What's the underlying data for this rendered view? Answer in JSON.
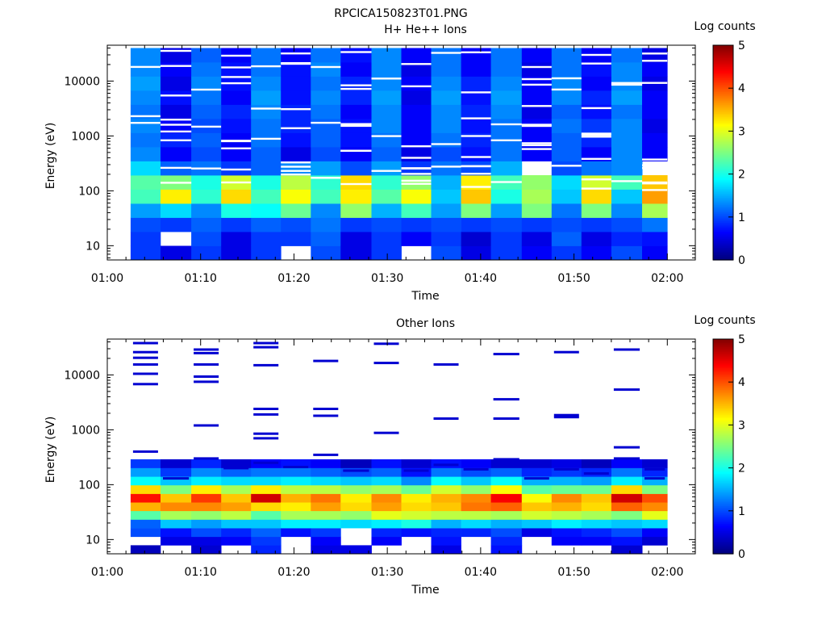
{
  "figure_title": "RPCICA150823T01.PNG",
  "colormap": [
    "#00007f",
    "#0000ff",
    "#007fff",
    "#00ffff",
    "#7fff7f",
    "#ffff00",
    "#ff7f00",
    "#ff0000",
    "#7f0000"
  ],
  "chart_data": [
    {
      "type": "heatmap",
      "title": "H+ He++ Ions",
      "xlabel": "Time",
      "ylabel": "Energy (eV)",
      "x_ticks": [
        "01:00",
        "01:10",
        "01:20",
        "01:30",
        "01:40",
        "01:50",
        "02:00"
      ],
      "xlim_minutes": [
        0,
        63
      ],
      "y_scale": "log",
      "ylim": [
        5.5,
        45000
      ],
      "y_ticks": [
        10,
        100,
        1000,
        10000
      ],
      "y_tick_labels": [
        "10",
        "100",
        "1000",
        "10000"
      ],
      "colorbar": {
        "label": "Log counts",
        "ticks": [
          0,
          1,
          2,
          3,
          4,
          5
        ],
        "range": [
          0,
          5
        ]
      },
      "time_bins": [
        {
          "start": "01:02.5",
          "end": "01:05.7",
          "levels": [
            0.9,
            0.9,
            1.0,
            1.4,
            2.2,
            2.3,
            1.7,
            1.3,
            1.2,
            1.3,
            1.2,
            1.3,
            1.4,
            1.3,
            1.3
          ]
        },
        {
          "start": "01:05.7",
          "end": "01:09",
          "levels": [
            0.5,
            null,
            0.9,
            1.7,
            3.2,
            2.5,
            1.1,
            0.6,
            0.8,
            0.6,
            0.5,
            0.7,
            0.5,
            0.6,
            0.5
          ]
        },
        {
          "start": "01:09",
          "end": "01:12.2",
          "levels": [
            0.9,
            1.0,
            1.1,
            1.3,
            2.1,
            2.0,
            1.2,
            1.0,
            1.1,
            1.0,
            1.1,
            1.2,
            1.3,
            1.2,
            1.1
          ]
        },
        {
          "start": "01:12.2",
          "end": "01:15.4",
          "levels": [
            0.5,
            0.5,
            0.9,
            2.0,
            3.3,
            2.9,
            0.9,
            0.6,
            0.6,
            0.7,
            0.8,
            0.6,
            0.7,
            0.7,
            0.6
          ]
        },
        {
          "start": "01:15.4",
          "end": "01:18.6",
          "levels": [
            0.9,
            0.9,
            1.1,
            1.9,
            2.2,
            2.0,
            1.1,
            1.1,
            1.2,
            1.2,
            1.3,
            1.4,
            1.3,
            1.2,
            1.2
          ]
        },
        {
          "start": "01:18.6",
          "end": "01:21.8",
          "levels": [
            null,
            0.9,
            1.0,
            2.4,
            3.1,
            2.8,
            1.3,
            0.5,
            0.7,
            0.8,
            0.8,
            0.7,
            0.7,
            0.7,
            0.6
          ]
        },
        {
          "start": "01:21.8",
          "end": "01:25",
          "levels": [
            1.0,
            1.1,
            1.2,
            1.3,
            2.2,
            2.1,
            1.4,
            1.0,
            1.1,
            1.1,
            1.2,
            1.3,
            1.2,
            1.3,
            1.2
          ]
        },
        {
          "start": "01:25",
          "end": "01:28.3",
          "levels": [
            0.5,
            0.5,
            0.9,
            2.6,
            3.2,
            3.3,
            1.0,
            0.6,
            0.7,
            0.7,
            0.6,
            0.8,
            0.8,
            0.6,
            0.7
          ]
        },
        {
          "start": "01:28.3",
          "end": "01:31.5",
          "levels": [
            0.9,
            0.9,
            1.0,
            1.5,
            2.3,
            2.1,
            1.4,
            1.1,
            1.2,
            1.3,
            1.3,
            1.4,
            1.3,
            1.3,
            1.3
          ]
        },
        {
          "start": "01:31.5",
          "end": "01:34.7",
          "levels": [
            null,
            0.6,
            0.9,
            2.2,
            3.1,
            2.6,
            0.9,
            0.5,
            0.6,
            0.6,
            0.6,
            0.5,
            0.6,
            0.5,
            0.6
          ]
        },
        {
          "start": "01:34.7",
          "end": "01:37.9",
          "levels": [
            1.0,
            0.9,
            1.0,
            1.4,
            1.6,
            1.5,
            1.2,
            1.0,
            1.2,
            1.3,
            1.3,
            1.4,
            1.3,
            1.2,
            1.2
          ]
        },
        {
          "start": "01:37.9",
          "end": "01:41.1",
          "levels": [
            0.5,
            0.4,
            0.9,
            2.5,
            3.4,
            3.2,
            1.0,
            0.7,
            0.8,
            0.7,
            0.8,
            0.7,
            0.8,
            0.6,
            0.6
          ]
        },
        {
          "start": "01:41.1",
          "end": "01:44.4",
          "levels": [
            0.9,
            0.9,
            1.0,
            1.4,
            2.0,
            2.2,
            1.5,
            1.2,
            1.2,
            1.2,
            1.3,
            1.4,
            1.3,
            1.2,
            1.2
          ]
        },
        {
          "start": "01:44.4",
          "end": "01:47.6",
          "levels": [
            0.6,
            0.5,
            0.9,
            2.5,
            2.7,
            2.6,
            null,
            0.6,
            0.6,
            0.6,
            0.5,
            0.6,
            0.6,
            0.5,
            0.6
          ]
        },
        {
          "start": "01:47.6",
          "end": "01:50.8",
          "levels": [
            0.9,
            1.1,
            1.0,
            1.2,
            1.6,
            1.7,
            1.0,
            1.1,
            1.1,
            1.2,
            1.1,
            1.3,
            1.3,
            1.2,
            1.2
          ]
        },
        {
          "start": "01:50.8",
          "end": "01:54",
          "levels": [
            0.6,
            0.5,
            0.9,
            2.5,
            3.3,
            2.9,
            1.2,
            0.6,
            0.8,
            0.9,
            0.7,
            0.8,
            0.6,
            0.7,
            0.6
          ]
        },
        {
          "start": "01:54",
          "end": "01:57.3",
          "levels": [
            1.0,
            0.8,
            1.0,
            1.3,
            1.6,
            2.2,
            1.3,
            1.3,
            1.3,
            1.3,
            1.2,
            1.4,
            1.3,
            1.3,
            1.2
          ]
        },
        {
          "start": "01:57.3",
          "end": "02:00",
          "levels": [
            0.6,
            0.7,
            1.2,
            2.7,
            3.6,
            3.4,
            null,
            0.6,
            0.6,
            0.5,
            0.6,
            0.6,
            0.5,
            0.6,
            0.5
          ]
        }
      ]
    },
    {
      "type": "heatmap",
      "title": "Other Ions",
      "xlabel": "Time",
      "ylabel": "Energy (eV)",
      "x_ticks": [
        "01:00",
        "01:10",
        "01:20",
        "01:30",
        "01:40",
        "01:50",
        "02:00"
      ],
      "xlim_minutes": [
        0,
        63
      ],
      "y_scale": "log",
      "ylim": [
        5.5,
        45000
      ],
      "y_ticks": [
        10,
        100,
        1000,
        10000
      ],
      "y_tick_labels": [
        "10",
        "100",
        "1000",
        "10000"
      ],
      "colorbar": {
        "label": "Log counts",
        "ticks": [
          0,
          1,
          2,
          3,
          4,
          5
        ],
        "range": [
          0,
          5
        ]
      },
      "time_bins": [
        {
          "start": "01:02.5",
          "end": "01:05.7",
          "levels": [
            0.3,
            null,
            1.0,
            1.1,
            2.3,
            3.5,
            4.3,
            3.3,
            1.9,
            1.4,
            0.9
          ],
          "sparse_energies": [
            400,
            6800,
            10500,
            15500,
            20500,
            26000,
            38000
          ]
        },
        {
          "start": "01:05.7",
          "end": "01:09",
          "levels": [
            null,
            0.5,
            0.7,
            1.6,
            2.7,
            3.7,
            3.4,
            2.5,
            1.6,
            0.9,
            0.4
          ],
          "sparse_energies": [
            130
          ]
        },
        {
          "start": "01:09",
          "end": "01:12.2",
          "levels": [
            0.4,
            0.5,
            1.0,
            1.4,
            2.6,
            3.7,
            4.1,
            3.2,
            1.8,
            1.3,
            0.8
          ],
          "sparse_energies": [
            300,
            1200,
            7500,
            9300,
            15500,
            25000,
            29000
          ]
        },
        {
          "start": "01:12.2",
          "end": "01:15.4",
          "levels": [
            null,
            0.6,
            0.8,
            1.6,
            2.8,
            3.6,
            3.4,
            2.7,
            1.7,
            1.1,
            0.4
          ],
          "sparse_energies": [
            200
          ]
        },
        {
          "start": "01:15.4",
          "end": "01:18.6",
          "levels": [
            0.8,
            0.9,
            1.1,
            1.6,
            2.3,
            3.3,
            4.6,
            3.2,
            1.7,
            1.2,
            0.6
          ],
          "sparse_energies": [
            250,
            700,
            850,
            1900,
            2400,
            15000,
            32000,
            38000
          ]
        },
        {
          "start": "01:18.6",
          "end": "01:21.8",
          "levels": [
            null,
            null,
            0.7,
            1.8,
            2.7,
            3.2,
            3.5,
            2.8,
            1.8,
            1.2,
            0.7
          ],
          "sparse_energies": [
            210
          ]
        },
        {
          "start": "01:21.8",
          "end": "01:25",
          "levels": [
            0.5,
            0.6,
            0.9,
            1.8,
            2.7,
            3.6,
            3.8,
            2.8,
            1.7,
            1.1,
            0.6
          ],
          "sparse_energies": [
            350,
            1800,
            2400,
            18000
          ]
        },
        {
          "start": "01:25",
          "end": "01:28.3",
          "levels": [
            0.5,
            null,
            null,
            1.7,
            2.6,
            3.3,
            3.2,
            2.6,
            1.6,
            1.0,
            0.3
          ],
          "sparse_energies": [
            180
          ]
        },
        {
          "start": "01:28.3",
          "end": "01:31.5",
          "levels": [
            null,
            0.6,
            0.8,
            1.8,
            3.0,
            3.6,
            3.7,
            2.7,
            1.7,
            1.1,
            0.7
          ],
          "sparse_energies": [
            880,
            16500,
            37000
          ]
        },
        {
          "start": "01:31.5",
          "end": "01:34.7",
          "levels": [
            null,
            null,
            0.7,
            2.0,
            2.9,
            3.3,
            3.2,
            2.4,
            1.3,
            0.7,
            0.4
          ],
          "sparse_energies": [
            180
          ]
        },
        {
          "start": "01:34.7",
          "end": "01:37.9",
          "levels": [
            0.5,
            0.7,
            0.8,
            1.5,
            2.8,
            3.4,
            3.5,
            2.9,
            1.9,
            1.2,
            0.7
          ],
          "sparse_energies": [
            230,
            1600,
            15500
          ]
        },
        {
          "start": "01:37.9",
          "end": "01:41.1",
          "levels": [
            null,
            null,
            0.8,
            1.7,
            2.8,
            3.8,
            3.7,
            2.6,
            1.6,
            1.0,
            0.6
          ],
          "sparse_energies": [
            190
          ]
        },
        {
          "start": "01:41.1",
          "end": "01:44.4",
          "levels": [
            0.7,
            0.8,
            1.0,
            1.5,
            2.7,
            3.9,
            4.4,
            3.1,
            1.9,
            1.1,
            0.4
          ],
          "sparse_energies": [
            290,
            1600,
            3600,
            24000
          ]
        },
        {
          "start": "01:44.4",
          "end": "01:47.6",
          "levels": [
            null,
            null,
            0.5,
            1.6,
            2.9,
            3.4,
            3.1,
            2.3,
            1.5,
            0.8,
            0.4
          ],
          "sparse_energies": [
            130
          ]
        },
        {
          "start": "01:47.6",
          "end": "01:50.8",
          "levels": [
            null,
            0.6,
            0.7,
            1.8,
            2.8,
            3.5,
            3.7,
            2.4,
            1.5,
            0.9,
            0.5
          ],
          "sparse_energies": [
            190,
            1700,
            1850,
            26000
          ]
        },
        {
          "start": "01:50.8",
          "end": "01:54",
          "levels": [
            null,
            0.6,
            0.8,
            1.7,
            2.7,
            3.3,
            3.4,
            2.4,
            1.4,
            0.8,
            0.3
          ],
          "sparse_energies": [
            160
          ]
        },
        {
          "start": "01:54",
          "end": "01:57.3",
          "levels": [
            0.4,
            0.7,
            1.0,
            1.6,
            2.5,
            3.9,
            4.6,
            3.3,
            1.8,
            1.2,
            0.6
          ],
          "sparse_energies": [
            300,
            480,
            5400,
            29000
          ]
        },
        {
          "start": "01:57.3",
          "end": "02:00",
          "levels": [
            null,
            0.4,
            0.6,
            1.7,
            3.0,
            3.7,
            4.0,
            2.5,
            1.5,
            0.8,
            0.4
          ],
          "sparse_energies": [
            130,
            190
          ]
        }
      ]
    }
  ]
}
